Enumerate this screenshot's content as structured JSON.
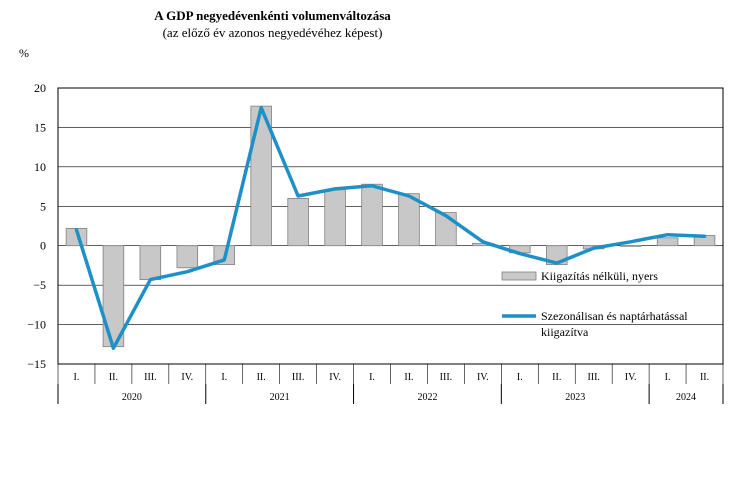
{
  "chart_data": {
    "type": "bar+line",
    "title": "A GDP negyedévenkénti volumenváltozása",
    "subtitle": "(az előző év azonos negyedévéhez képest)",
    "ylabel": "%",
    "ylim": [
      -15,
      20
    ],
    "yticks": [
      -15,
      -10,
      -5,
      0,
      5,
      10,
      15,
      20
    ],
    "ytick_labels": [
      "−15",
      "−10",
      "−5",
      "0",
      "5",
      "10",
      "15",
      "20"
    ],
    "categories": [
      "I.",
      "II.",
      "III.",
      "IV.",
      "I.",
      "II.",
      "III.",
      "IV.",
      "I.",
      "II.",
      "III.",
      "IV.",
      "I.",
      "II.",
      "III.",
      "IV.",
      "I.",
      "II."
    ],
    "years": [
      {
        "label": "2020",
        "quarters": 4
      },
      {
        "label": "2021",
        "quarters": 4
      },
      {
        "label": "2022",
        "quarters": 4
      },
      {
        "label": "2023",
        "quarters": 4
      },
      {
        "label": "2024",
        "quarters": 2
      }
    ],
    "series": [
      {
        "name": "Kiigazítás nélküli, nyers",
        "kind": "bar",
        "color": "#c8c8c8",
        "values": [
          2.2,
          -12.8,
          -4.3,
          -2.8,
          -2.4,
          17.7,
          6.0,
          7.1,
          7.8,
          6.6,
          4.2,
          0.3,
          -0.9,
          -2.4,
          -0.4,
          0.0,
          1.0,
          1.3
        ]
      },
      {
        "name": "Szezonálisan és naptárhatással kiigazítva",
        "kind": "line",
        "color": "#1e90c8",
        "values": [
          2.0,
          -13.0,
          -4.3,
          -3.3,
          -1.8,
          17.5,
          6.3,
          7.2,
          7.6,
          6.3,
          3.8,
          0.5,
          -1.0,
          -2.2,
          -0.3,
          0.5,
          1.4,
          1.2
        ]
      }
    ],
    "legend": {
      "position": "bottom-right",
      "bar_label": "Kiigazítás nélküli, nyers",
      "line_label_1": "Szezonálisan és naptárhatással",
      "line_label_2": "kiigazítva"
    }
  }
}
